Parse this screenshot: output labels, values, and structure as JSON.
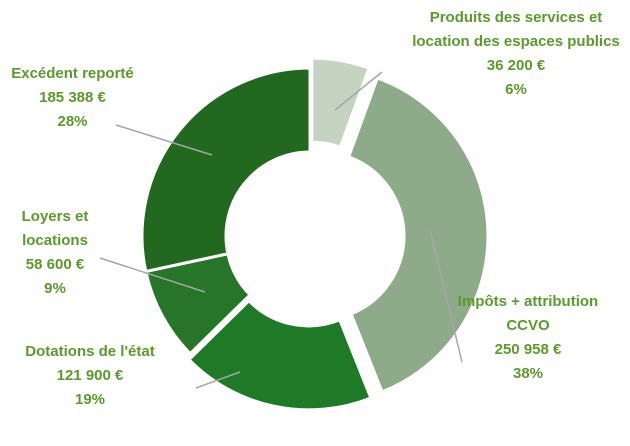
{
  "chart_data": {
    "type": "donut",
    "categories": [
      "Produits des services et location des espaces publics",
      "Impôts + attribution CCVO",
      "Dotations de l'état",
      "Loyers et locations",
      "Excédent reporté"
    ],
    "values": [
      36200,
      250958,
      121900,
      58600,
      185388
    ],
    "value_labels": [
      "36 200 €",
      "250 958 €",
      "121 900 €",
      "58 600 €",
      "185 388 €"
    ],
    "percent_labels": [
      "6%",
      "38%",
      "19%",
      "9%",
      "28%"
    ],
    "colors": [
      "#c5d4c1",
      "#8eab89",
      "#1e7a27",
      "#267528",
      "#22691f"
    ]
  }
}
